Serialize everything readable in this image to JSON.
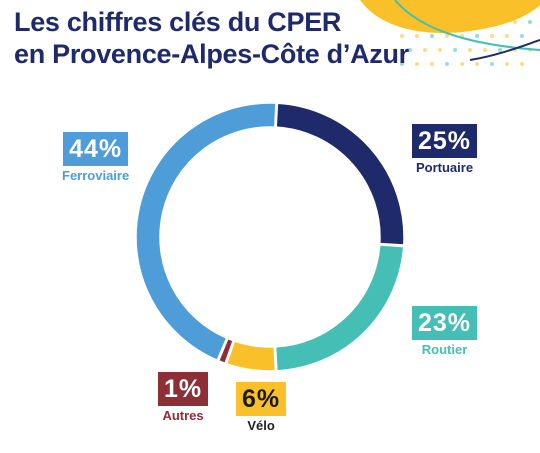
{
  "header": {
    "title_line1": "Les chiffres clés du CPER",
    "title_line2": "en Provence-Alpes-Côte d’Azur"
  },
  "chart_data": {
    "type": "pie",
    "variant": "donut",
    "title": "",
    "unit": "%",
    "categories": [
      "Portuaire",
      "Routier",
      "Vélo",
      "Autres",
      "Ferroviaire"
    ],
    "values": [
      25,
      23,
      6,
      1,
      44
    ],
    "labels": [
      "25%",
      "23%",
      "6%",
      "1%",
      "44%"
    ],
    "colors": [
      "#1f2a6b",
      "#45bfb5",
      "#f9c02a",
      "#8c2f37",
      "#4e9dd8"
    ],
    "legend": "labels placed around the ring"
  },
  "labels": {
    "ferroviaire": {
      "pct": "44%",
      "name": "Ferroviaire",
      "color": "#4e9dd8"
    },
    "portuaire": {
      "pct": "25%",
      "name": "Portuaire",
      "color": "#1f2a6b"
    },
    "routier": {
      "pct": "23%",
      "name": "Routier",
      "color": "#45bfb5"
    },
    "velo": {
      "pct": "6%",
      "name": "Vélo",
      "color": "#f9c02a"
    },
    "autres": {
      "pct": "1%",
      "name": "Autres",
      "color": "#8c2f37"
    }
  },
  "decoration": {
    "wave_colors": [
      "#f9c02a",
      "#45bfb5",
      "#1f2a6b"
    ]
  }
}
